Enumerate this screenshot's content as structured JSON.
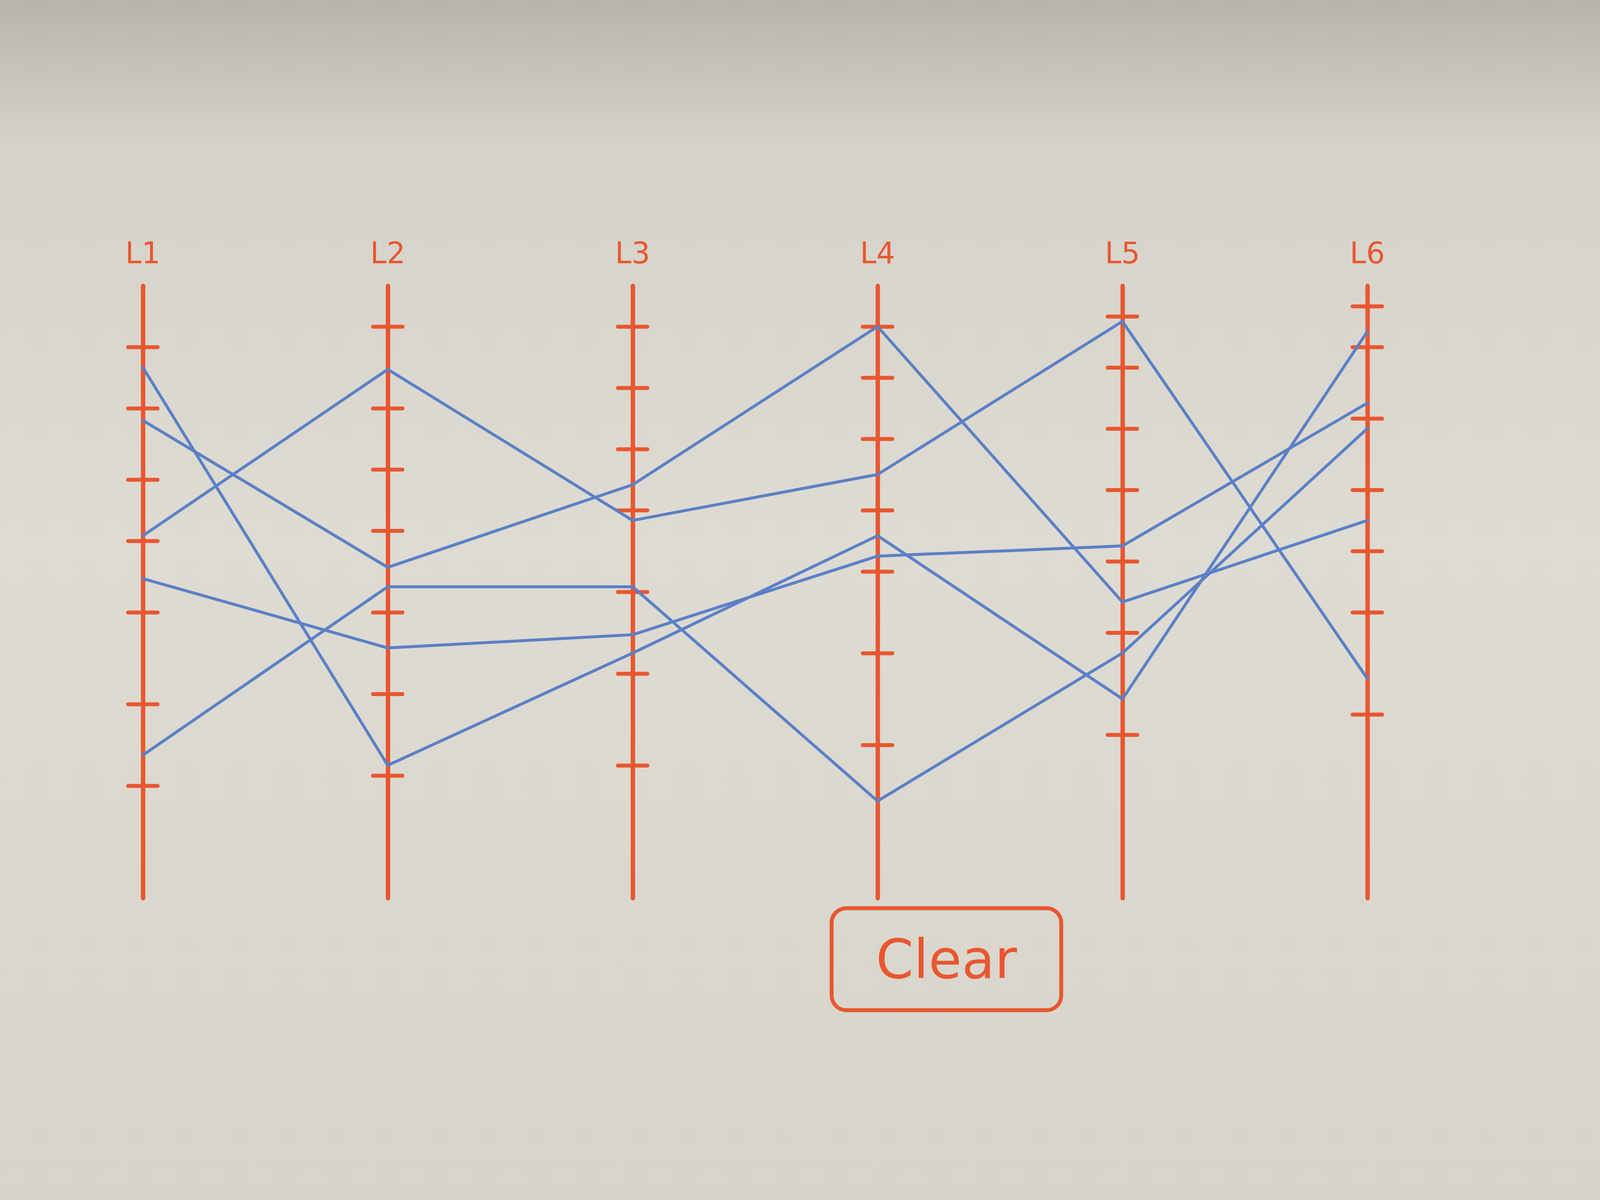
{
  "chart_data": {
    "type": "parallel",
    "categories": [
      "L1",
      "L2",
      "L3",
      "L4",
      "L5",
      "L6"
    ],
    "ylim": [
      0,
      60
    ],
    "yticks": [
      [
        54,
        48,
        41,
        35,
        28,
        19,
        11
      ],
      [
        56,
        48,
        42,
        36,
        28,
        20,
        12
      ],
      [
        56,
        50,
        44,
        38,
        30,
        22,
        13
      ],
      [
        56,
        51,
        45,
        38,
        32,
        24,
        15
      ],
      [
        57,
        52,
        46,
        40,
        33,
        26,
        16
      ],
      [
        58,
        54,
        47,
        40,
        34,
        28,
        18
      ]
    ],
    "tick_labels": false,
    "series": [
      {
        "color": "#5b80c6",
        "values": [
          52,
          13,
          24,
          35.5,
          19.5,
          55.5
        ]
      },
      {
        "color": "#5b80c6",
        "values": [
          46.8,
          32.4,
          40.5,
          56,
          29,
          37
        ]
      },
      {
        "color": "#5b80c6",
        "values": [
          35.5,
          51.8,
          37,
          41.5,
          56.5,
          21.5
        ]
      },
      {
        "color": "#5b80c6",
        "values": [
          31.3,
          24.5,
          25.8,
          33.5,
          34.5,
          48.5
        ]
      },
      {
        "color": "#5b80c6",
        "values": [
          14,
          30.5,
          30.5,
          9.5,
          24,
          46
        ]
      }
    ]
  },
  "button": {
    "label": "Clear"
  }
}
